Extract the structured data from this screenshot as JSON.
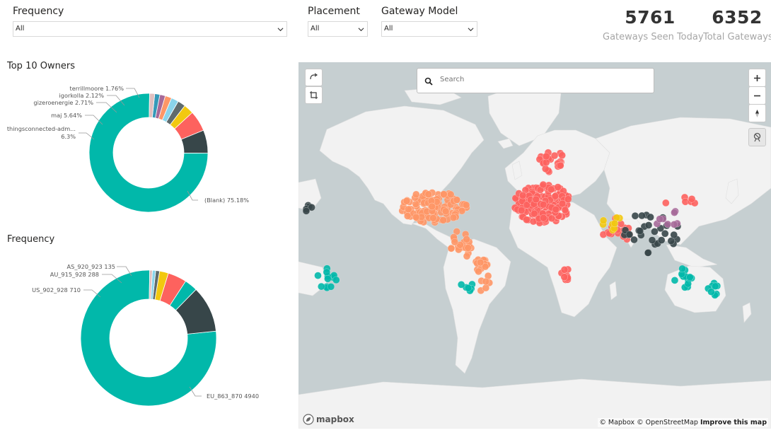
{
  "filters": {
    "frequency": {
      "title": "Frequency",
      "value": "All"
    },
    "placement": {
      "title": "Placement",
      "value": "All"
    },
    "gateway_model": {
      "title": "Gateway Model",
      "value": "All"
    }
  },
  "kpis": {
    "seen_today": {
      "value": "5761",
      "label": "Gateways Seen Today"
    },
    "total": {
      "value": "6352",
      "label": "Total Gateways"
    }
  },
  "owners_chart": {
    "title": "Top 10 Owners",
    "chart_data": {
      "type": "pie",
      "title": "Top 10 Owners",
      "slices": [
        {
          "label": "(Blank) 75.18%",
          "value": 75.18,
          "color": "#01b8aa"
        },
        {
          "label": "thingsconnected-adm... 6.3%",
          "value": 6.3,
          "color": "#374649"
        },
        {
          "label": "maj 5.64%",
          "value": 5.64,
          "color": "#fd625e"
        },
        {
          "label": "gizeroenergie 2.71%",
          "value": 2.71,
          "color": "#f2c80f"
        },
        {
          "label": "igorkolla 2.12%",
          "value": 2.12,
          "color": "#5f6b6d"
        },
        {
          "label": "",
          "value": 2.0,
          "color": "#8ad4eb"
        },
        {
          "label": "terrillmoore 1.76%",
          "value": 1.76,
          "color": "#fe9666"
        },
        {
          "label": "",
          "value": 1.5,
          "color": "#a66999"
        },
        {
          "label": "",
          "value": 1.4,
          "color": "#3599b8"
        },
        {
          "label": "",
          "value": 1.39,
          "color": "#dfbfbf"
        }
      ]
    },
    "labels": {
      "blank": "(Blank) 75.18%",
      "things1": "thingsconnected-adm...",
      "things2": "6.3%",
      "maj": "maj 5.64%",
      "gizero": "gizeroenergie 2.71%",
      "igor": "igorkolla 2.12%",
      "terrill": "terrillmoore 1.76%"
    }
  },
  "frequency_chart": {
    "title": "Frequency",
    "chart_data": {
      "type": "pie",
      "title": "Frequency",
      "slices": [
        {
          "label": "EU_863_870 4940",
          "value": 4940,
          "color": "#01b8aa"
        },
        {
          "label": "US_902_928 710",
          "value": 710,
          "color": "#374649"
        },
        {
          "label": "",
          "value": 200,
          "color": "#01b8aa"
        },
        {
          "label": "AU_915_928 288",
          "value": 288,
          "color": "#fd625e"
        },
        {
          "label": "AS_920_923 135",
          "value": 135,
          "color": "#f2c80f"
        },
        {
          "label": "",
          "value": 60,
          "color": "#5f6b6d"
        },
        {
          "label": "",
          "value": 50,
          "color": "#8ad4eb"
        },
        {
          "label": "",
          "value": 40,
          "color": "#dfbfbf"
        }
      ]
    },
    "labels": {
      "eu": "EU_863_870 4940",
      "us": "US_902_928 710",
      "au": "AU_915_928 288",
      "as": "AS_920_923 135"
    }
  },
  "map": {
    "search_placeholder": "Search",
    "attribution_left": "© Mapbox © OpenStreetMap",
    "attribution_right": "Improve this map",
    "logo": "mapbox",
    "colors": {
      "water": "#c6cfd1",
      "land": "#f2f2f2"
    }
  }
}
